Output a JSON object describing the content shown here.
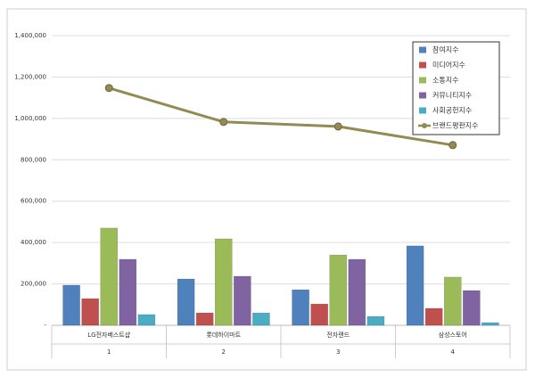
{
  "chart_data": {
    "type": "bar-line",
    "categories": [
      "LG전자베스트샵",
      "롯데하이마트",
      "전자랜드",
      "삼성스토어"
    ],
    "ranks": [
      "1",
      "2",
      "3",
      "4"
    ],
    "series": [
      {
        "name": "참여지수",
        "type": "bar",
        "color": "#4f81bd",
        "values": [
          194000,
          224000,
          172000,
          384000
        ]
      },
      {
        "name": "미디어지수",
        "type": "bar",
        "color": "#c0504d",
        "values": [
          129000,
          60000,
          103000,
          82000
        ]
      },
      {
        "name": "소통지수",
        "type": "bar",
        "color": "#9bbb59",
        "values": [
          470000,
          418000,
          340000,
          233000
        ]
      },
      {
        "name": "커뮤니티지수",
        "type": "bar",
        "color": "#8064a2",
        "values": [
          319000,
          237000,
          319000,
          168000
        ]
      },
      {
        "name": "사회공헌지수",
        "type": "bar",
        "color": "#4bacc6",
        "values": [
          52000,
          60000,
          43000,
          13000
        ]
      },
      {
        "name": "브랜드평판지수",
        "type": "line",
        "color": "#948a54",
        "values": [
          1147000,
          983000,
          961000,
          871000
        ]
      }
    ],
    "ylim": [
      0,
      1400000
    ],
    "yticks": [
      {
        "value": 0,
        "label": "-"
      },
      {
        "value": 200000,
        "label": "200,000"
      },
      {
        "value": 400000,
        "label": "400,000"
      },
      {
        "value": 600000,
        "label": "600,000"
      },
      {
        "value": 800000,
        "label": "800,000"
      },
      {
        "value": 1000000,
        "label": "1,000,000"
      },
      {
        "value": 1200000,
        "label": "1,200,000"
      },
      {
        "value": 1400000,
        "label": "1,400,000"
      }
    ],
    "grid": true,
    "legend": "upper right"
  }
}
